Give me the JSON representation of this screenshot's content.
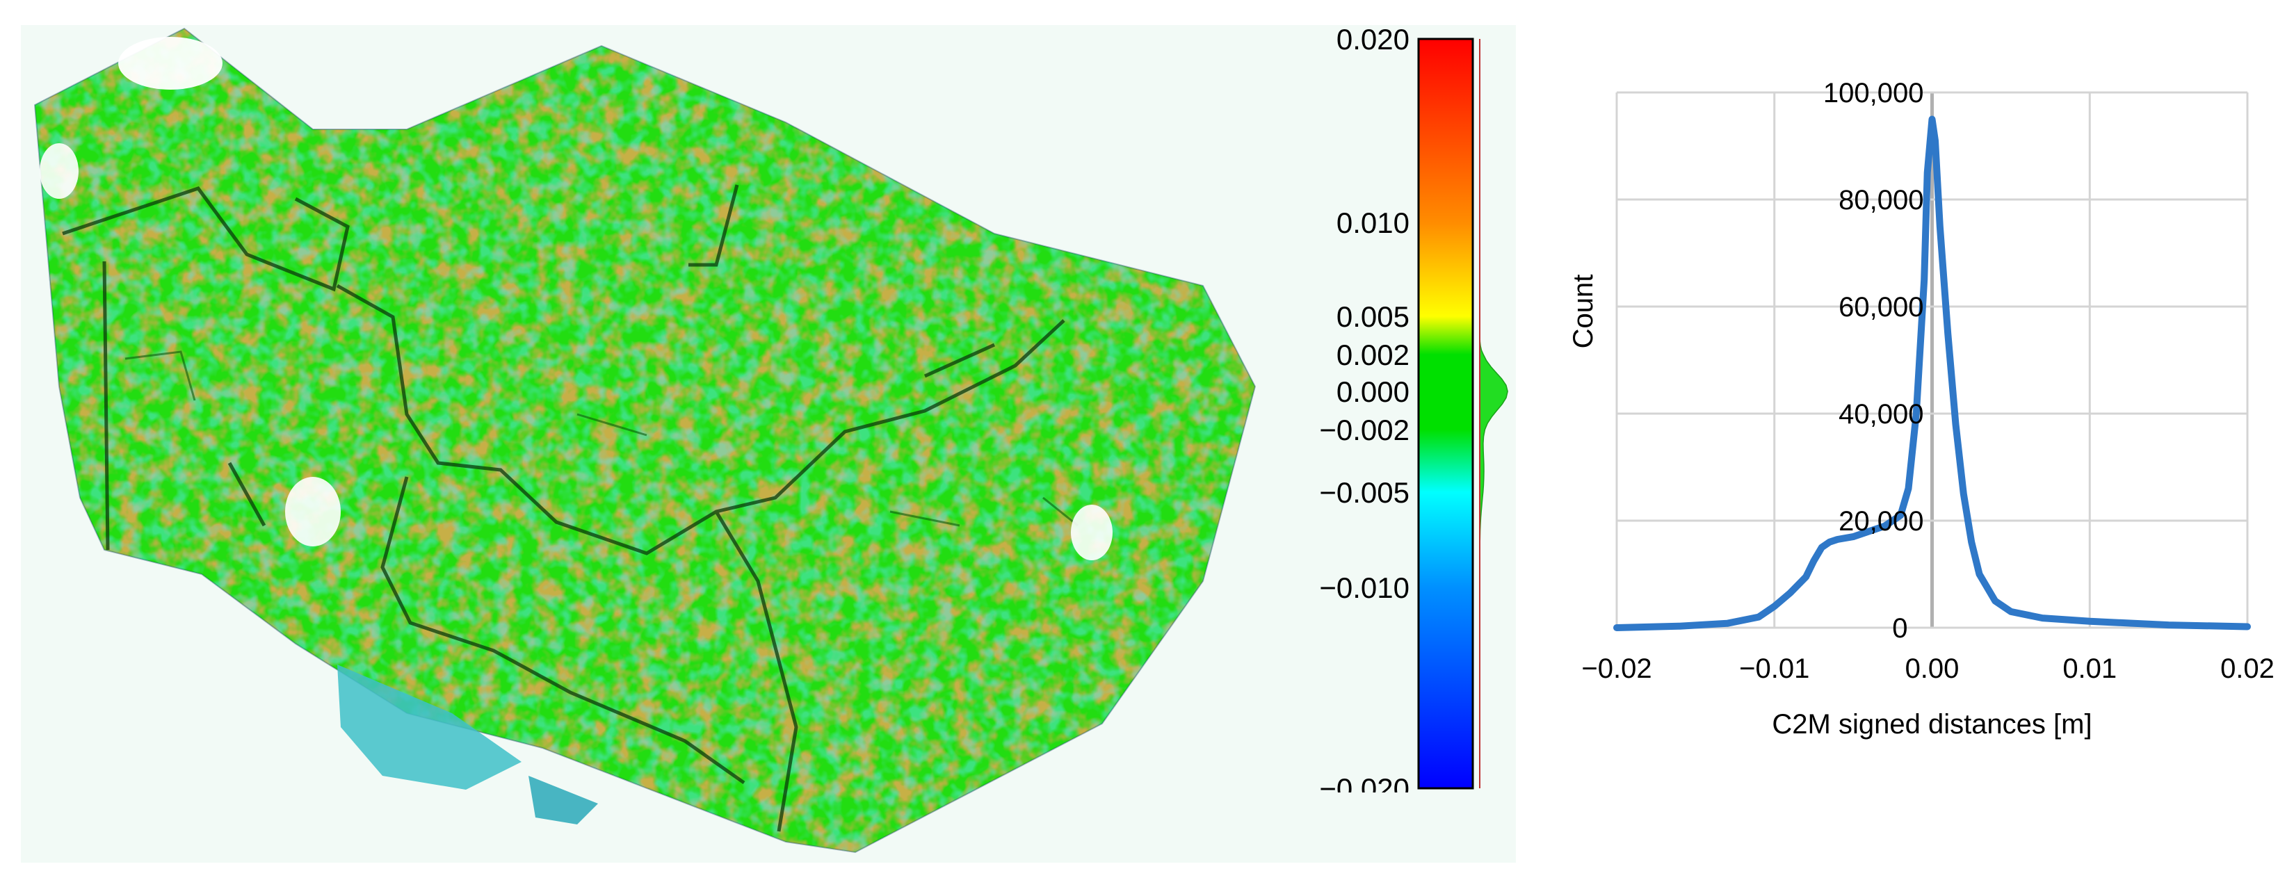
{
  "colorbar": {
    "tick_labels": [
      "0.020",
      "0.010",
      "0.005",
      "0.002",
      "0.000",
      "−0.002",
      "−0.005",
      "−0.010",
      "−0.020"
    ],
    "tick_values": [
      0.02,
      0.01,
      0.005,
      0.002,
      0.0,
      -0.002,
      -0.005,
      -0.01,
      -0.02
    ],
    "color_stops": [
      {
        "value": 0.02,
        "color": "#ff0000"
      },
      {
        "value": 0.01,
        "color": "#ff8c00"
      },
      {
        "value": 0.005,
        "color": "#ffff00"
      },
      {
        "value": 0.002,
        "color": "#00e000"
      },
      {
        "value": -0.002,
        "color": "#00e000"
      },
      {
        "value": -0.005,
        "color": "#00ffff"
      },
      {
        "value": -0.01,
        "color": "#0090ff"
      },
      {
        "value": -0.02,
        "color": "#0000ff"
      }
    ]
  },
  "point_cloud": {
    "background_color": "#f2faf6",
    "dominant_color": "#22dd11"
  },
  "chart_data": {
    "type": "line",
    "xlabel": "C2M signed distances [m]",
    "ylabel": "Count",
    "xlim": [
      -0.02,
      0.02
    ],
    "ylim": [
      0,
      100000
    ],
    "x_ticks": [
      -0.02,
      -0.01,
      0.0,
      0.01,
      0.02
    ],
    "x_tick_labels": [
      "−0.02",
      "−0.01",
      "0.00",
      "0.01",
      "0.02"
    ],
    "y_ticks": [
      0,
      20000,
      40000,
      60000,
      80000,
      100000
    ],
    "y_tick_labels": [
      "0",
      "20,000",
      "40,000",
      "60,000",
      "80,000",
      "100,000"
    ],
    "grid": true,
    "series": [
      {
        "color": "#2f78c8",
        "x": [
          -0.02,
          -0.016,
          -0.013,
          -0.011,
          -0.01,
          -0.009,
          -0.008,
          -0.0075,
          -0.007,
          -0.0065,
          -0.006,
          -0.005,
          -0.004,
          -0.003,
          -0.002,
          -0.0015,
          -0.001,
          -0.0005,
          -0.0003,
          0.0,
          0.0002,
          0.0005,
          0.001,
          0.0015,
          0.002,
          0.0025,
          0.003,
          0.004,
          0.005,
          0.007,
          0.01,
          0.015,
          0.02
        ],
        "y": [
          0,
          300,
          800,
          2000,
          4000,
          6500,
          9500,
          12500,
          15000,
          16000,
          16500,
          17000,
          18000,
          19000,
          21000,
          26000,
          40000,
          65000,
          85000,
          95000,
          91000,
          75000,
          55000,
          38000,
          25000,
          16000,
          10000,
          5000,
          3000,
          1800,
          1200,
          500,
          200
        ]
      }
    ]
  }
}
